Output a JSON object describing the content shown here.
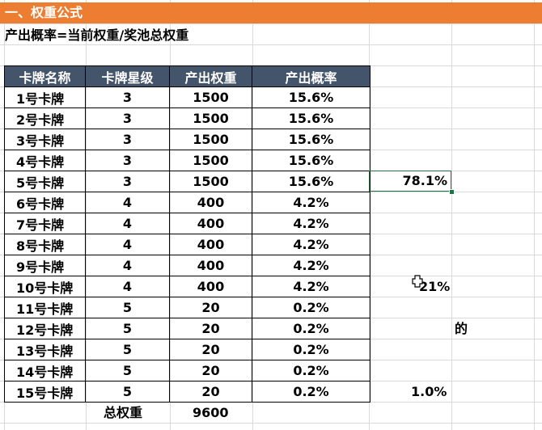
{
  "title": "一、权重公式",
  "formula": "产出概率=当前权重/奖池总权重",
  "table": {
    "headers": [
      "卡牌名称",
      "卡牌星级",
      "产出权重",
      "产出概率"
    ],
    "rows": [
      [
        "1号卡牌",
        "3",
        "1500",
        "15.6%"
      ],
      [
        "2号卡牌",
        "3",
        "1500",
        "15.6%"
      ],
      [
        "3号卡牌",
        "3",
        "1500",
        "15.6%"
      ],
      [
        "4号卡牌",
        "3",
        "1500",
        "15.6%"
      ],
      [
        "5号卡牌",
        "3",
        "1500",
        "15.6%"
      ],
      [
        "6号卡牌",
        "4",
        "400",
        "4.2%"
      ],
      [
        "7号卡牌",
        "4",
        "400",
        "4.2%"
      ],
      [
        "8号卡牌",
        "4",
        "400",
        "4.2%"
      ],
      [
        "9号卡牌",
        "4",
        "400",
        "4.2%"
      ],
      [
        "10号卡牌",
        "4",
        "400",
        "4.2%"
      ],
      [
        "11号卡牌",
        "5",
        "20",
        "0.2%"
      ],
      [
        "12号卡牌",
        "5",
        "20",
        "0.2%"
      ],
      [
        "13号卡牌",
        "5",
        "20",
        "0.2%"
      ],
      [
        "14号卡牌",
        "5",
        "20",
        "0.2%"
      ],
      [
        "15号卡牌",
        "5",
        "20",
        "0.2%"
      ]
    ]
  },
  "total": {
    "label": "总权重",
    "value": "9600"
  },
  "side": {
    "three_star_sum": "78.1%",
    "four_star_sum": "21%",
    "note": "的",
    "five_star_sum": "1.0%"
  },
  "colors": {
    "title_bg": "#ed7d31",
    "header_bg": "#44546a",
    "selection": "#217346"
  },
  "icons": {
    "cursor": "move-cursor-icon"
  }
}
